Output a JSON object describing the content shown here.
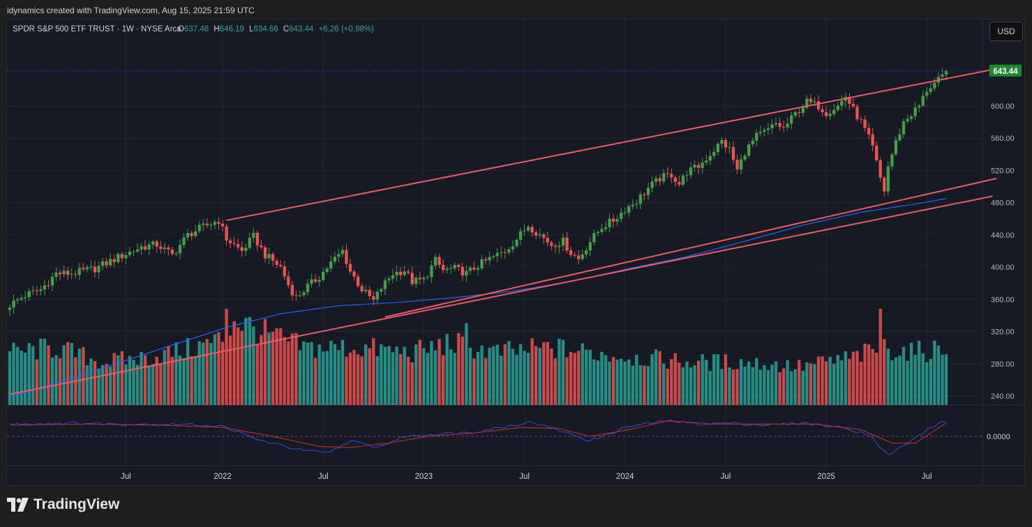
{
  "header": {
    "text": "idynamics created with TradingView.com, Aug 15, 2025 21:59 UTC"
  },
  "legend": {
    "symbol": "SPDR S&P 500 ETF TRUST · 1W · NYSE Arca",
    "o_label": "O",
    "o_value": "637.46",
    "h_label": "H",
    "h_value": "646.19",
    "l_label": "L",
    "l_value": "634.66",
    "c_label": "C",
    "c_value": "643.44",
    "change": "+6.26 (+0.98%)"
  },
  "currency_button": "USD",
  "footer": {
    "brand": "TradingView"
  },
  "colors": {
    "up": "#26a69a",
    "up_candle": "#43a047",
    "down": "#ef5350",
    "ma": "#2962ff",
    "channel": "#f05a67",
    "bg": "#161a25",
    "price_tag": "#1b8a2d"
  },
  "chart_data": {
    "type": "candlestick",
    "timeframe": "1W",
    "y_axis": {
      "ticks": [
        240,
        280,
        320,
        360,
        400,
        440,
        480,
        520,
        560,
        600
      ],
      "range": [
        227,
        690
      ]
    },
    "x_axis": {
      "labels": [
        {
          "t": 30,
          "label": "Jul"
        },
        {
          "t": 55,
          "label": "2022"
        },
        {
          "t": 81,
          "label": "Jul"
        },
        {
          "t": 107,
          "label": "2023"
        },
        {
          "t": 133,
          "label": "Jul"
        },
        {
          "t": 159,
          "label": "2024"
        },
        {
          "t": 185,
          "label": "Jul"
        },
        {
          "t": 211,
          "label": "2025"
        },
        {
          "t": 237,
          "label": "Jul"
        }
      ]
    },
    "last_price": "643.44",
    "price_series": [
      {
        "t": 0,
        "v": 353
      },
      {
        "t": 4,
        "v": 365
      },
      {
        "t": 8,
        "v": 372
      },
      {
        "t": 12,
        "v": 392
      },
      {
        "t": 16,
        "v": 392
      },
      {
        "t": 22,
        "v": 398
      },
      {
        "t": 28,
        "v": 412
      },
      {
        "t": 34,
        "v": 425
      },
      {
        "t": 38,
        "v": 428
      },
      {
        "t": 42,
        "v": 415
      },
      {
        "t": 46,
        "v": 440
      },
      {
        "t": 50,
        "v": 450
      },
      {
        "t": 54,
        "v": 458
      },
      {
        "t": 56,
        "v": 435
      },
      {
        "t": 60,
        "v": 420
      },
      {
        "t": 63,
        "v": 438
      },
      {
        "t": 66,
        "v": 415
      },
      {
        "t": 70,
        "v": 400
      },
      {
        "t": 72,
        "v": 378
      },
      {
        "t": 74,
        "v": 362
      },
      {
        "t": 77,
        "v": 376
      },
      {
        "t": 80,
        "v": 388
      },
      {
        "t": 83,
        "v": 405
      },
      {
        "t": 86,
        "v": 420
      },
      {
        "t": 88,
        "v": 395
      },
      {
        "t": 91,
        "v": 372
      },
      {
        "t": 94,
        "v": 358
      },
      {
        "t": 96,
        "v": 374
      },
      {
        "t": 99,
        "v": 392
      },
      {
        "t": 102,
        "v": 396
      },
      {
        "t": 104,
        "v": 382
      },
      {
        "t": 107,
        "v": 384
      },
      {
        "t": 110,
        "v": 408
      },
      {
        "t": 112,
        "v": 396
      },
      {
        "t": 115,
        "v": 398
      },
      {
        "t": 118,
        "v": 392
      },
      {
        "t": 121,
        "v": 402
      },
      {
        "t": 124,
        "v": 410
      },
      {
        "t": 128,
        "v": 420
      },
      {
        "t": 131,
        "v": 435
      },
      {
        "t": 134,
        "v": 452
      },
      {
        "t": 137,
        "v": 440
      },
      {
        "t": 140,
        "v": 428
      },
      {
        "t": 143,
        "v": 432
      },
      {
        "t": 145,
        "v": 418
      },
      {
        "t": 147,
        "v": 410
      },
      {
        "t": 150,
        "v": 432
      },
      {
        "t": 153,
        "v": 450
      },
      {
        "t": 156,
        "v": 458
      },
      {
        "t": 159,
        "v": 472
      },
      {
        "t": 162,
        "v": 482
      },
      {
        "t": 165,
        "v": 498
      },
      {
        "t": 168,
        "v": 510
      },
      {
        "t": 171,
        "v": 515
      },
      {
        "t": 173,
        "v": 503
      },
      {
        "t": 175,
        "v": 518
      },
      {
        "t": 178,
        "v": 525
      },
      {
        "t": 181,
        "v": 540
      },
      {
        "t": 184,
        "v": 556
      },
      {
        "t": 186,
        "v": 546
      },
      {
        "t": 188,
        "v": 520
      },
      {
        "t": 190,
        "v": 543
      },
      {
        "t": 193,
        "v": 562
      },
      {
        "t": 196,
        "v": 570
      },
      {
        "t": 198,
        "v": 578
      },
      {
        "t": 200,
        "v": 572
      },
      {
        "t": 203,
        "v": 590
      },
      {
        "t": 206,
        "v": 605
      },
      {
        "t": 209,
        "v": 600
      },
      {
        "t": 211,
        "v": 592
      },
      {
        "t": 214,
        "v": 600
      },
      {
        "t": 216,
        "v": 612
      },
      {
        "t": 218,
        "v": 595
      },
      {
        "t": 220,
        "v": 580
      },
      {
        "t": 222,
        "v": 560
      },
      {
        "t": 223,
        "v": 548
      },
      {
        "t": 225,
        "v": 510
      },
      {
        "t": 226,
        "v": 495
      },
      {
        "t": 227,
        "v": 525
      },
      {
        "t": 229,
        "v": 555
      },
      {
        "t": 231,
        "v": 580
      },
      {
        "t": 233,
        "v": 590
      },
      {
        "t": 235,
        "v": 600
      },
      {
        "t": 237,
        "v": 620
      },
      {
        "t": 239,
        "v": 628
      },
      {
        "t": 241,
        "v": 635
      },
      {
        "t": 242,
        "v": 643.44
      }
    ],
    "volume_series": [
      {
        "t": 0,
        "v": 0.55
      },
      {
        "t": 12,
        "v": 0.6
      },
      {
        "t": 24,
        "v": 0.45
      },
      {
        "t": 36,
        "v": 0.5
      },
      {
        "t": 48,
        "v": 0.6
      },
      {
        "t": 55,
        "v": 0.7
      },
      {
        "t": 58,
        "v": 0.9
      },
      {
        "t": 66,
        "v": 0.75
      },
      {
        "t": 76,
        "v": 0.6
      },
      {
        "t": 90,
        "v": 0.6
      },
      {
        "t": 104,
        "v": 0.55
      },
      {
        "t": 114,
        "v": 0.65
      },
      {
        "t": 126,
        "v": 0.55
      },
      {
        "t": 140,
        "v": 0.6
      },
      {
        "t": 150,
        "v": 0.55
      },
      {
        "t": 162,
        "v": 0.5
      },
      {
        "t": 176,
        "v": 0.45
      },
      {
        "t": 190,
        "v": 0.45
      },
      {
        "t": 204,
        "v": 0.4
      },
      {
        "t": 218,
        "v": 0.5
      },
      {
        "t": 226,
        "v": 0.6
      },
      {
        "t": 234,
        "v": 0.55
      },
      {
        "t": 242,
        "v": 0.6
      }
    ],
    "volume_spikes": [
      {
        "t": 56,
        "v": 1.0
      },
      {
        "t": 118,
        "v": 0.85
      },
      {
        "t": 225,
        "v": 1.0
      }
    ],
    "moving_average": [
      {
        "t": 0,
        "v": 238
      },
      {
        "t": 20,
        "v": 268
      },
      {
        "t": 40,
        "v": 300
      },
      {
        "t": 56,
        "v": 325
      },
      {
        "t": 70,
        "v": 342
      },
      {
        "t": 85,
        "v": 352
      },
      {
        "t": 100,
        "v": 356
      },
      {
        "t": 115,
        "v": 362
      },
      {
        "t": 130,
        "v": 370
      },
      {
        "t": 145,
        "v": 382
      },
      {
        "t": 160,
        "v": 398
      },
      {
        "t": 175,
        "v": 413
      },
      {
        "t": 190,
        "v": 432
      },
      {
        "t": 205,
        "v": 452
      },
      {
        "t": 220,
        "v": 468
      },
      {
        "t": 235,
        "v": 479
      },
      {
        "t": 242,
        "v": 485
      }
    ],
    "channel_lines": [
      {
        "from": {
          "t": 56,
          "v": 458
        },
        "to": {
          "t": 257,
          "v": 648
        }
      },
      {
        "from": {
          "t": 97,
          "v": 338
        },
        "to": {
          "t": 255,
          "v": 510
        }
      },
      {
        "from": {
          "t": 0,
          "v": 242
        },
        "to": {
          "t": 254,
          "v": 488
        }
      }
    ],
    "oscillator": {
      "zero_label": "0.0000",
      "fast": [
        {
          "t": 0,
          "v": 0.55
        },
        {
          "t": 15,
          "v": 0.6
        },
        {
          "t": 30,
          "v": 0.55
        },
        {
          "t": 45,
          "v": 0.55
        },
        {
          "t": 55,
          "v": 0.45
        },
        {
          "t": 65,
          "v": -0.2
        },
        {
          "t": 75,
          "v": -0.6
        },
        {
          "t": 82,
          "v": -0.75
        },
        {
          "t": 88,
          "v": -0.2
        },
        {
          "t": 95,
          "v": -0.5
        },
        {
          "t": 102,
          "v": 0.0
        },
        {
          "t": 110,
          "v": 0.1
        },
        {
          "t": 120,
          "v": 0.2
        },
        {
          "t": 130,
          "v": 0.5
        },
        {
          "t": 135,
          "v": 0.65
        },
        {
          "t": 145,
          "v": 0.1
        },
        {
          "t": 150,
          "v": -0.2
        },
        {
          "t": 160,
          "v": 0.45
        },
        {
          "t": 170,
          "v": 0.7
        },
        {
          "t": 178,
          "v": 0.55
        },
        {
          "t": 186,
          "v": 0.6
        },
        {
          "t": 195,
          "v": 0.5
        },
        {
          "t": 205,
          "v": 0.6
        },
        {
          "t": 215,
          "v": 0.4
        },
        {
          "t": 222,
          "v": 0.1
        },
        {
          "t": 227,
          "v": -0.85
        },
        {
          "t": 233,
          "v": -0.2
        },
        {
          "t": 238,
          "v": 0.4
        },
        {
          "t": 242,
          "v": 0.7
        }
      ],
      "slow": [
        {
          "t": 0,
          "v": 0.5
        },
        {
          "t": 20,
          "v": 0.55
        },
        {
          "t": 40,
          "v": 0.5
        },
        {
          "t": 55,
          "v": 0.4
        },
        {
          "t": 68,
          "v": 0.0
        },
        {
          "t": 80,
          "v": -0.45
        },
        {
          "t": 88,
          "v": -0.5
        },
        {
          "t": 98,
          "v": -0.3
        },
        {
          "t": 108,
          "v": 0.0
        },
        {
          "t": 120,
          "v": 0.15
        },
        {
          "t": 132,
          "v": 0.4
        },
        {
          "t": 142,
          "v": 0.35
        },
        {
          "t": 150,
          "v": 0.0
        },
        {
          "t": 160,
          "v": 0.3
        },
        {
          "t": 170,
          "v": 0.7
        },
        {
          "t": 182,
          "v": 0.55
        },
        {
          "t": 195,
          "v": 0.55
        },
        {
          "t": 208,
          "v": 0.55
        },
        {
          "t": 220,
          "v": 0.3
        },
        {
          "t": 228,
          "v": -0.3
        },
        {
          "t": 234,
          "v": -0.3
        },
        {
          "t": 242,
          "v": 0.6
        }
      ]
    }
  }
}
